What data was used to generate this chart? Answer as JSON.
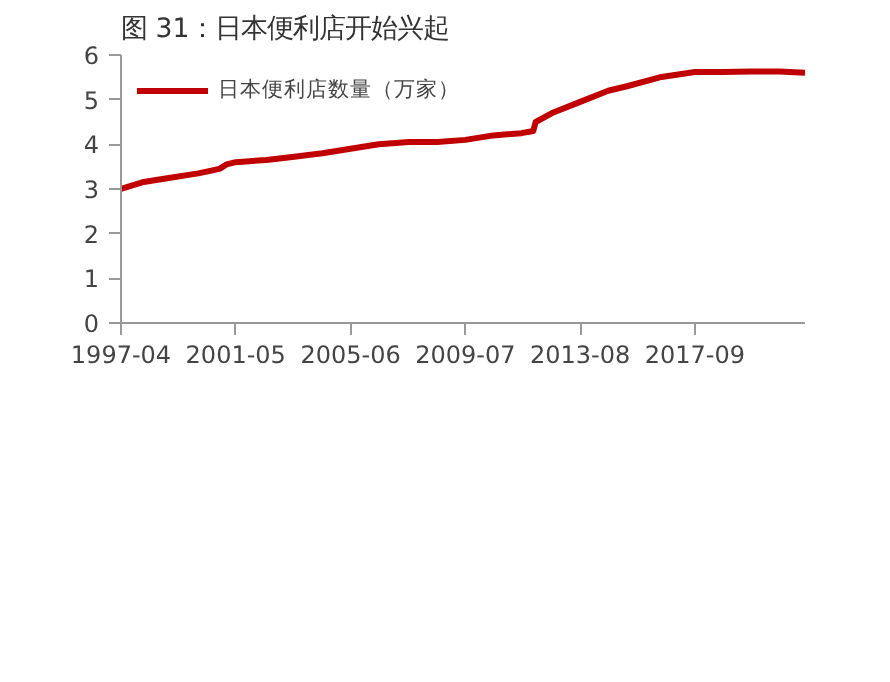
{
  "chart_data": {
    "type": "line",
    "title": "图 31：日本便利店开始兴起",
    "x": [
      "1997-04",
      "1998-01",
      "1999-01",
      "2000-01",
      "2000-10",
      "2001-01",
      "2001-05",
      "2002-06",
      "2003-06",
      "2004-06",
      "2005-06",
      "2006-06",
      "2007-07",
      "2008-07",
      "2009-07",
      "2010-07",
      "2011-07",
      "2011-12",
      "2012-01",
      "2012-08",
      "2013-08",
      "2014-08",
      "2015-04",
      "2016-06",
      "2017-09",
      "2018-09",
      "2019-09",
      "2020-09",
      "2021-08"
    ],
    "series": [
      {
        "name": "日本便利店数量（万家）",
        "color": "#c00000",
        "values": [
          3.0,
          3.15,
          3.25,
          3.35,
          3.45,
          3.55,
          3.6,
          3.65,
          3.72,
          3.8,
          3.9,
          4.0,
          4.05,
          4.05,
          4.1,
          4.2,
          4.25,
          4.3,
          4.5,
          4.7,
          4.95,
          5.2,
          5.3,
          5.5,
          5.62,
          5.62,
          5.63,
          5.63,
          5.6
        ]
      }
    ],
    "xlim": [
      "1997-04",
      "2021-08"
    ],
    "xticks": [
      "1997-04",
      "2001-05",
      "2005-06",
      "2009-07",
      "2013-08",
      "2017-09"
    ],
    "ylim": [
      0,
      6
    ],
    "yticks": [
      0,
      1,
      2,
      3,
      4,
      5,
      6
    ],
    "legend": "top",
    "grid": false
  }
}
